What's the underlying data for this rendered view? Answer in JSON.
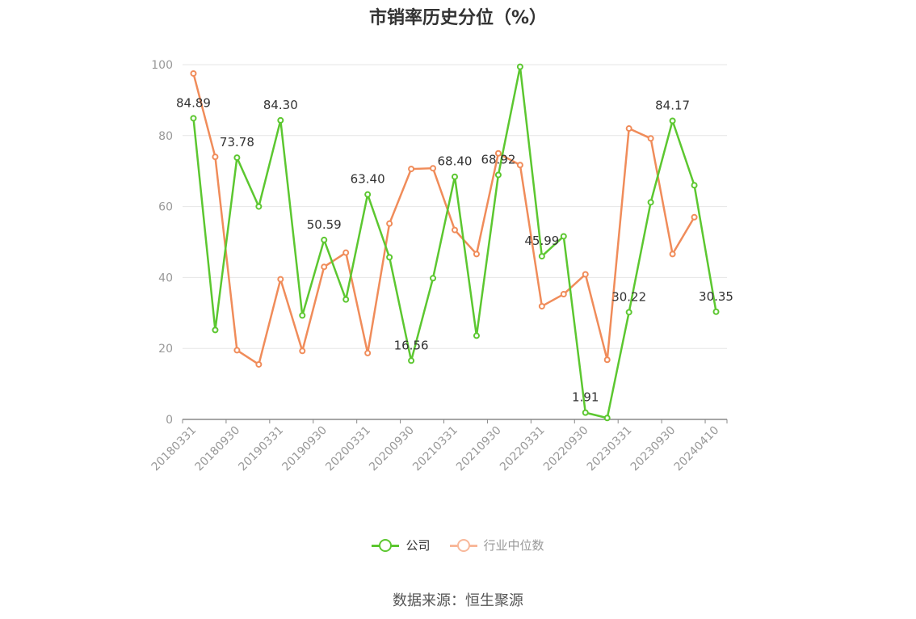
{
  "chart_data": {
    "type": "line",
    "title": "市销率历史分位（%）",
    "xlabel": "",
    "ylabel": "",
    "ylim": [
      0,
      100
    ],
    "yticks": [
      0,
      20,
      40,
      60,
      80,
      100
    ],
    "grid": true,
    "legend_position": "bottom",
    "x": [
      "20180331",
      "20180630",
      "20180930",
      "20181231",
      "20190331",
      "20190630",
      "20190930",
      "20191231",
      "20200331",
      "20200630",
      "20200930",
      "20201231",
      "20210331",
      "20210630",
      "20210930",
      "20211231",
      "20220331",
      "20220630",
      "20220930",
      "20221231",
      "20230331",
      "20230630",
      "20230930",
      "20231231",
      "20240410"
    ],
    "xtick_labels": [
      "20180331",
      "20180930",
      "20190331",
      "20190930",
      "20200331",
      "20200930",
      "20210331",
      "20210930",
      "20220331",
      "20220930",
      "20230331",
      "20230930",
      "20240410"
    ],
    "series": [
      {
        "name": "公司",
        "color": "#5cc730",
        "values": [
          84.89,
          25.2,
          73.78,
          60.0,
          84.3,
          29.3,
          50.59,
          33.8,
          63.4,
          45.7,
          16.56,
          39.8,
          68.4,
          23.6,
          68.92,
          99.4,
          45.99,
          51.6,
          1.91,
          0.4,
          30.22,
          61.2,
          84.17,
          66.0,
          30.35
        ],
        "data_labels": {
          "0": "84.89",
          "2": "73.78",
          "4": "84.30",
          "6": "50.59",
          "8": "63.40",
          "10": "16.56",
          "12": "68.40",
          "14": "68.92",
          "16": "45.99",
          "18": "1.91",
          "20": "30.22",
          "22": "84.17",
          "24": "30.35"
        }
      },
      {
        "name": "行业中位数",
        "color": "#f08c5a",
        "values": [
          97.5,
          74.0,
          19.5,
          15.5,
          39.5,
          19.3,
          43.0,
          47.0,
          18.7,
          55.2,
          70.6,
          70.8,
          53.4,
          46.6,
          75.0,
          71.7,
          31.9,
          35.3,
          40.9,
          16.8,
          82.0,
          79.2,
          46.6,
          57.0,
          null
        ]
      }
    ]
  },
  "legend": {
    "items": [
      {
        "label": "公司",
        "color": "#5cc730",
        "text_color": "#333333"
      },
      {
        "label": "行业中位数",
        "color": "#f8b89a",
        "text_color": "#999999"
      }
    ]
  },
  "source": "数据来源：恒生聚源"
}
